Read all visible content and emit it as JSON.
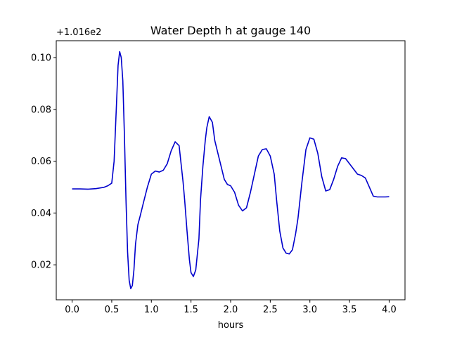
{
  "chart_data": {
    "type": "line",
    "title": "Water Depth h at gauge 140",
    "xlabel": "hours",
    "ylabel": "",
    "y_offset_label": "+1.016e2",
    "xlim": [
      -0.2,
      4.2
    ],
    "ylim": [
      0.0065,
      0.1065
    ],
    "x_ticks": [
      0.0,
      0.5,
      1.0,
      1.5,
      2.0,
      2.5,
      3.0,
      3.5,
      4.0
    ],
    "x_tick_labels": [
      "0.0",
      "0.5",
      "1.0",
      "1.5",
      "2.0",
      "2.5",
      "3.0",
      "3.5",
      "4.0"
    ],
    "y_ticks": [
      0.02,
      0.04,
      0.06,
      0.08,
      0.1
    ],
    "y_tick_labels": [
      "0.02",
      "0.04",
      "0.06",
      "0.08",
      "0.10"
    ],
    "grid": false,
    "line_color": "#0000cc",
    "series": [
      {
        "x": [
          0.0,
          0.1,
          0.2,
          0.3,
          0.4,
          0.45,
          0.5,
          0.53,
          0.56,
          0.58,
          0.6,
          0.62,
          0.64,
          0.66,
          0.68,
          0.7,
          0.72,
          0.74,
          0.76,
          0.78,
          0.8,
          0.83,
          0.86,
          0.9,
          0.95,
          1.0,
          1.05,
          1.1,
          1.15,
          1.2,
          1.25,
          1.3,
          1.35,
          1.4,
          1.42,
          1.45,
          1.48,
          1.5,
          1.53,
          1.56,
          1.6,
          1.62,
          1.65,
          1.68,
          1.7,
          1.73,
          1.77,
          1.8,
          1.84,
          1.88,
          1.92,
          1.96,
          2.0,
          2.05,
          2.1,
          2.15,
          2.2,
          2.25,
          2.3,
          2.35,
          2.4,
          2.45,
          2.5,
          2.55,
          2.58,
          2.62,
          2.66,
          2.7,
          2.74,
          2.78,
          2.82,
          2.85,
          2.9,
          2.95,
          3.0,
          3.05,
          3.1,
          3.15,
          3.2,
          3.25,
          3.3,
          3.35,
          3.4,
          3.45,
          3.5,
          3.55,
          3.6,
          3.65,
          3.7,
          3.75,
          3.8,
          3.85,
          3.9,
          3.95,
          4.0
        ],
        "y": [
          0.0493,
          0.0493,
          0.0492,
          0.0494,
          0.0499,
          0.0505,
          0.0515,
          0.06,
          0.082,
          0.097,
          0.1023,
          0.1,
          0.091,
          0.07,
          0.045,
          0.025,
          0.014,
          0.0108,
          0.012,
          0.018,
          0.028,
          0.0355,
          0.039,
          0.044,
          0.05,
          0.055,
          0.0562,
          0.0558,
          0.0565,
          0.059,
          0.064,
          0.0675,
          0.066,
          0.052,
          0.045,
          0.033,
          0.022,
          0.017,
          0.0155,
          0.018,
          0.03,
          0.045,
          0.058,
          0.068,
          0.073,
          0.0772,
          0.075,
          0.068,
          0.063,
          0.058,
          0.053,
          0.051,
          0.0505,
          0.048,
          0.043,
          0.0408,
          0.042,
          0.048,
          0.055,
          0.062,
          0.0645,
          0.0648,
          0.062,
          0.055,
          0.045,
          0.033,
          0.0265,
          0.0245,
          0.0242,
          0.0258,
          0.032,
          0.038,
          0.052,
          0.0645,
          0.069,
          0.0685,
          0.063,
          0.054,
          0.0485,
          0.049,
          0.053,
          0.058,
          0.0613,
          0.061,
          0.059,
          0.057,
          0.055,
          0.0545,
          0.0535,
          0.05,
          0.0465,
          0.0462,
          0.0462,
          0.0462,
          0.0463
        ]
      }
    ]
  }
}
